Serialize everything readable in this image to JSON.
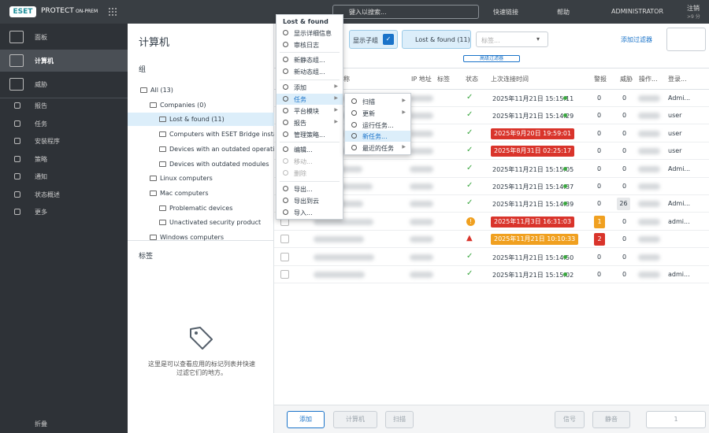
{
  "header": {
    "logo": "ESET",
    "product": "PROTECT",
    "edition": "ON-PREM",
    "search_placeholder": "键入以搜索...",
    "quick_links": "快速链接",
    "help": "帮助",
    "user": "ADMINISTRATOR",
    "logout": "注销",
    "logout_sub": ">9 分"
  },
  "sidebar": {
    "active": 1,
    "items": [
      "面板",
      "计算机",
      "威胁",
      "报告",
      "任务",
      "安装程序",
      "策略",
      "通知",
      "状态概述",
      "更多"
    ],
    "collapse": "折叠"
  },
  "groups_panel": {
    "title": "计算机",
    "groups_header": "组",
    "selected": 2,
    "tree": [
      {
        "label": "All (13)",
        "level": 0
      },
      {
        "label": "Companies (0)",
        "level": 1
      },
      {
        "label": "Lost & found (11)",
        "level": 2
      },
      {
        "label": "Computers with ESET Bridge installed",
        "level": 2
      },
      {
        "label": "Devices with an outdated operating system",
        "level": 2
      },
      {
        "label": "Devices with outdated modules",
        "level": 2
      },
      {
        "label": "Linux computers",
        "level": 1
      },
      {
        "label": "Mac computers",
        "level": 1
      },
      {
        "label": "Problematic devices",
        "level": 2
      },
      {
        "label": "Unactivated security product",
        "level": 2
      },
      {
        "label": "Windows computers",
        "level": 1
      }
    ],
    "tags_header": "标签",
    "tags_empty": "这里是可以查看应用的标记列表并快速过滤它们的地方。"
  },
  "filter_bar": {
    "show_subgroups": "显示子组",
    "group_chip": "Lost & found (11)",
    "tags_placeholder": "标签...",
    "add_filter": "添加过滤器",
    "advanced": "高级过滤器"
  },
  "table": {
    "columns": [
      "名称",
      "IP 地址",
      "标签",
      "状态",
      "上次连接时间",
      "警报",
      "威胁",
      "操作...",
      "登录..."
    ],
    "rows": [
      {
        "status": "ok",
        "last_connected": "2025年11月21日 15:15:11",
        "time_flag": null,
        "alerts": 0,
        "alerts_color": null,
        "threats": 0,
        "threats_badge": false,
        "login": "Admi..."
      },
      {
        "status": "ok",
        "last_connected": "2025年11月21日 15:14:29",
        "time_flag": null,
        "alerts": 0,
        "alerts_color": null,
        "threats": 0,
        "threats_badge": false,
        "login": "user"
      },
      {
        "status": "ok",
        "last_connected": "2025年9月20日 19:59:01",
        "time_flag": "#d9342b",
        "alerts": 0,
        "alerts_color": null,
        "threats": 0,
        "threats_badge": false,
        "login": "user"
      },
      {
        "status": "ok",
        "last_connected": "2025年8月31日 02:25:17",
        "time_flag": "#d9342b",
        "alerts": 0,
        "alerts_color": null,
        "threats": 0,
        "threats_badge": false,
        "login": "user"
      },
      {
        "status": "ok",
        "last_connected": "2025年11月21日 15:15:05",
        "time_flag": null,
        "alerts": 0,
        "alerts_color": null,
        "threats": 0,
        "threats_badge": false,
        "login": "Admi..."
      },
      {
        "status": "ok",
        "last_connected": "2025年11月21日 15:14:37",
        "time_flag": null,
        "alerts": 0,
        "alerts_color": null,
        "threats": 0,
        "threats_badge": false,
        "login": null
      },
      {
        "status": "ok",
        "last_connected": "2025年11月21日 15:14:39",
        "time_flag": null,
        "alerts": 0,
        "alerts_color": null,
        "threats": 26,
        "threats_badge": true,
        "login": "Admi..."
      },
      {
        "status": "warning",
        "last_connected": "2025年11月3日 16:31:03",
        "time_flag": "#d9342b",
        "alerts": 1,
        "alerts_color": "#f0a020",
        "threats": 0,
        "threats_badge": false,
        "login": "admi..."
      },
      {
        "status": "error",
        "last_connected": "2025年11月21日 10:10:33",
        "time_flag": "#f0a020",
        "alerts": 2,
        "alerts_color": "#d9342b",
        "threats": 0,
        "threats_badge": false,
        "login": null
      },
      {
        "status": "ok",
        "last_connected": "2025年11月21日 15:14:50",
        "time_flag": null,
        "alerts": 0,
        "alerts_color": null,
        "threats": 0,
        "threats_badge": false,
        "login": null
      },
      {
        "status": "ok",
        "last_connected": "2025年11月21日 15:15:02",
        "time_flag": null,
        "alerts": 0,
        "alerts_color": null,
        "threats": 0,
        "threats_badge": false,
        "login": "admi..."
      }
    ]
  },
  "bottom_bar": {
    "add": "添加",
    "computers": "计算机",
    "scan": "扫描",
    "signal": "信号",
    "mute": "静音",
    "page": 1
  },
  "context_menu": {
    "title": "Lost & found",
    "items": [
      {
        "label": "显示详细信息"
      },
      {
        "label": "审核日志"
      },
      {
        "label": "新静态组...",
        "separator_before": true
      },
      {
        "label": "新动态组..."
      },
      {
        "label": "添加",
        "separator_before": true,
        "submenu": true
      },
      {
        "label": "任务",
        "submenu": true,
        "highlighted": true
      },
      {
        "label": "平台模块",
        "submenu": true
      },
      {
        "label": "报告",
        "submenu": true
      },
      {
        "label": "管理策略..."
      },
      {
        "label": "编辑...",
        "separator_before": true
      },
      {
        "label": "移动...",
        "disabled": true
      },
      {
        "label": "删除",
        "disabled": true
      },
      {
        "label": "导出...",
        "separator_before": true
      },
      {
        "label": "导出到云"
      },
      {
        "label": "导入..."
      }
    ]
  },
  "submenu": {
    "items": [
      {
        "label": "扫描",
        "submenu": true
      },
      {
        "label": "更新",
        "submenu": true
      },
      {
        "label": "运行任务..."
      },
      {
        "label": "新任务...",
        "highlighted": true
      },
      {
        "label": "最近的任务",
        "submenu": true
      }
    ]
  }
}
